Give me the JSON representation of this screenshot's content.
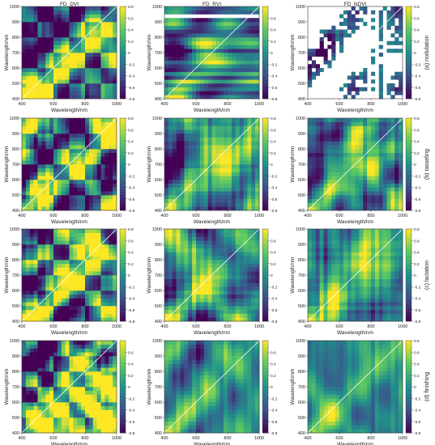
{
  "figure": {
    "column_titles": [
      "FD_DVI",
      "FD_RVI",
      "FD_NDVI"
    ],
    "row_labels": [
      "(a) nodulation",
      "(b) tasseling",
      "(c) lactation",
      "(d) finishing"
    ],
    "xlabel": "Wavelength/nm",
    "ylabel": "Wavelength/nm",
    "colormap": [
      "#440154",
      "#3b528b",
      "#21918c",
      "#5ec962",
      "#fde725"
    ]
  },
  "chart_data": [
    {
      "type": "heatmap",
      "row": 0,
      "col": 0,
      "title": "FD_DVI",
      "xlabel": "Wavelength/nm",
      "ylabel": "Wavelength/nm",
      "xlim": [
        400,
        1000
      ],
      "ylim": [
        400,
        1000
      ],
      "x_ticks": [
        "400",
        "600",
        "800",
        "1000"
      ],
      "y_ticks": [
        "400",
        "500",
        "600",
        "700",
        "800",
        "900",
        "1000"
      ],
      "colorbar_range": [
        -0.8,
        0.8
      ],
      "colorbar_ticks": [
        "0.8",
        "0.6",
        "0.4",
        "0.2",
        "0",
        "-0.2",
        "-0.4",
        "-0.6",
        "-0.8"
      ],
      "pattern": "strong_blocks",
      "missing": false
    },
    {
      "type": "heatmap",
      "row": 0,
      "col": 1,
      "title": "FD_RVI",
      "xlabel": "Wavelength/nm",
      "ylabel": "Wavelength/nm",
      "xlim": [
        400,
        1000
      ],
      "ylim": [
        400,
        1000
      ],
      "x_ticks": [
        "400",
        "600",
        "800",
        "1000"
      ],
      "y_ticks": [
        "400",
        "500",
        "600",
        "700",
        "800",
        "900",
        "1000"
      ],
      "colorbar_range": [
        -0.8,
        0.8
      ],
      "colorbar_ticks": [
        "0.6",
        "0.4",
        "0.2",
        "0",
        "-0.2",
        "-0.4",
        "-0.6",
        "-0.8"
      ],
      "pattern": "banded",
      "missing": true
    },
    {
      "type": "heatmap",
      "row": 0,
      "col": 2,
      "title": "FD_NDVI",
      "xlabel": "Wavelength/nm",
      "ylabel": "Wavelength/nm",
      "xlim": [
        400,
        1000
      ],
      "ylim": [
        400,
        1000
      ],
      "x_ticks": [
        "400",
        "600",
        "800",
        "1000"
      ],
      "y_ticks": [
        "400",
        "500",
        "600",
        "700",
        "800",
        "900",
        "1000"
      ],
      "colorbar_range": [
        -0.8,
        0.8
      ],
      "colorbar_ticks": [
        "0.8",
        "0.6",
        "0.4",
        "0.2",
        "0",
        "-0.2",
        "-0.4",
        "-0.6",
        "-0.8"
      ],
      "pattern": "sparse",
      "missing": true
    },
    {
      "type": "heatmap",
      "row": 1,
      "col": 0,
      "title": "",
      "xlabel": "Wavelength/nm",
      "ylabel": "Wavelength/nm",
      "xlim": [
        400,
        1000
      ],
      "ylim": [
        400,
        1000
      ],
      "x_ticks": [
        "400",
        "600",
        "800",
        "1000"
      ],
      "y_ticks": [
        "400",
        "500",
        "600",
        "700",
        "800",
        "900",
        "1000"
      ],
      "colorbar_range": [
        -0.8,
        0.8
      ],
      "colorbar_ticks": [
        "0.8",
        "0.6",
        "0.4",
        "0.2",
        "0",
        "-0.2",
        "-0.4",
        "-0.6",
        "-0.8"
      ],
      "pattern": "strong_blocks",
      "missing": false
    },
    {
      "type": "heatmap",
      "row": 1,
      "col": 1,
      "title": "",
      "xlabel": "Wavelength/nm",
      "ylabel": "Wavelength/nm",
      "xlim": [
        400,
        1000
      ],
      "ylim": [
        400,
        1000
      ],
      "x_ticks": [
        "400",
        "600",
        "800",
        "1000"
      ],
      "y_ticks": [
        "400",
        "500",
        "600",
        "700",
        "800",
        "900",
        "1000"
      ],
      "colorbar_range": [
        -0.8,
        0.8
      ],
      "colorbar_ticks": [
        "0.8",
        "0.6",
        "0.4",
        "0.2",
        "0",
        "-0.2",
        "-0.4",
        "-0.6",
        "-0.8"
      ],
      "pattern": "mixed",
      "missing": false
    },
    {
      "type": "heatmap",
      "row": 1,
      "col": 2,
      "title": "",
      "xlabel": "Wavelength/nm",
      "ylabel": "Wavelength/nm",
      "xlim": [
        400,
        1000
      ],
      "ylim": [
        400,
        1000
      ],
      "x_ticks": [
        "400",
        "600",
        "800",
        "1000"
      ],
      "y_ticks": [
        "400",
        "500",
        "600",
        "700",
        "800",
        "900",
        "1000"
      ],
      "colorbar_range": [
        -0.8,
        0.8
      ],
      "colorbar_ticks": [
        "0.8",
        "0.6",
        "0.4",
        "0.2",
        "0",
        "-0.2",
        "-0.4",
        "-0.6",
        "-0.8"
      ],
      "pattern": "mixed",
      "missing": false
    },
    {
      "type": "heatmap",
      "row": 2,
      "col": 0,
      "title": "",
      "xlabel": "Wavelength/nm",
      "ylabel": "Wavelength/nm",
      "xlim": [
        400,
        1000
      ],
      "ylim": [
        400,
        1000
      ],
      "x_ticks": [
        "400",
        "600",
        "800",
        "1000"
      ],
      "y_ticks": [
        "400",
        "500",
        "600",
        "700",
        "800",
        "900",
        "1000"
      ],
      "colorbar_range": [
        -0.8,
        0.8
      ],
      "colorbar_ticks": [
        "0.8",
        "0.6",
        "0.4",
        "0.2",
        "0",
        "-0.2",
        "-0.4",
        "-0.6",
        "-0.8"
      ],
      "pattern": "strong_blocks",
      "missing": false
    },
    {
      "type": "heatmap",
      "row": 2,
      "col": 1,
      "title": "",
      "xlabel": "Wavelength/nm",
      "ylabel": "Wavelength/nm",
      "xlim": [
        400,
        1000
      ],
      "ylim": [
        400,
        1000
      ],
      "x_ticks": [
        "400",
        "600",
        "800",
        "1000"
      ],
      "y_ticks": [
        "400",
        "500",
        "600",
        "700",
        "800",
        "900",
        "1000"
      ],
      "colorbar_range": [
        -0.8,
        0.8
      ],
      "colorbar_ticks": [
        "0.6",
        "0.4",
        "0.2",
        "0",
        "-0.2",
        "-0.4",
        "-0.6",
        "-0.8"
      ],
      "pattern": "mixed",
      "missing": false
    },
    {
      "type": "heatmap",
      "row": 2,
      "col": 2,
      "title": "",
      "xlabel": "Wavelength/nm",
      "ylabel": "Wavelength/nm",
      "xlim": [
        400,
        1000
      ],
      "ylim": [
        400,
        1000
      ],
      "x_ticks": [
        "400",
        "600",
        "800",
        "1000"
      ],
      "y_ticks": [
        "400",
        "500",
        "600",
        "700",
        "800",
        "900",
        "1000"
      ],
      "colorbar_range": [
        -0.8,
        0.8
      ],
      "colorbar_ticks": [
        "0.8",
        "0.6",
        "0.4",
        "0.2",
        "0",
        "-0.2",
        "-0.4",
        "-0.6",
        "-0.8"
      ],
      "pattern": "mixed",
      "missing": false
    },
    {
      "type": "heatmap",
      "row": 3,
      "col": 0,
      "title": "",
      "xlabel": "Wavelength/nm",
      "ylabel": "Wavelength/nm",
      "xlim": [
        400,
        1000
      ],
      "ylim": [
        400,
        1000
      ],
      "x_ticks": [
        "400",
        "600",
        "800",
        "1000"
      ],
      "y_ticks": [
        "400",
        "500",
        "600",
        "700",
        "800",
        "900",
        "1000"
      ],
      "colorbar_range": [
        -0.8,
        0.8
      ],
      "colorbar_ticks": [
        "0.6",
        "0.4",
        "0.2",
        "0",
        "-0.2",
        "-0.4",
        "-0.6",
        "-0.8"
      ],
      "pattern": "strong_blocks",
      "missing": false
    },
    {
      "type": "heatmap",
      "row": 3,
      "col": 1,
      "title": "",
      "xlabel": "Wavelength/nm",
      "ylabel": "Wavelength/nm",
      "xlim": [
        400,
        1000
      ],
      "ylim": [
        400,
        1000
      ],
      "x_ticks": [
        "400",
        "600",
        "800",
        "1000"
      ],
      "y_ticks": [
        "400",
        "500",
        "600",
        "700",
        "800",
        "900",
        "1000"
      ],
      "colorbar_range": [
        -0.8,
        0.8
      ],
      "colorbar_ticks": [
        "0.6",
        "0.4",
        "0.2",
        "0",
        "-0.2",
        "-0.4",
        "-0.6",
        "-0.8"
      ],
      "pattern": "muted",
      "missing": false
    },
    {
      "type": "heatmap",
      "row": 3,
      "col": 2,
      "title": "",
      "xlabel": "Wavelength/nm",
      "ylabel": "Wavelength/nm",
      "xlim": [
        400,
        1000
      ],
      "ylim": [
        400,
        1000
      ],
      "x_ticks": [
        "400",
        "600",
        "800",
        "1000"
      ],
      "y_ticks": [
        "400",
        "500",
        "600",
        "700",
        "800",
        "900",
        "1000"
      ],
      "colorbar_range": [
        -0.8,
        0.8
      ],
      "colorbar_ticks": [
        "0.8",
        "0.6",
        "0.4",
        "0.2",
        "0",
        "-0.2",
        "-0.4",
        "-0.6",
        "-0.8"
      ],
      "pattern": "muted",
      "missing": false
    }
  ]
}
